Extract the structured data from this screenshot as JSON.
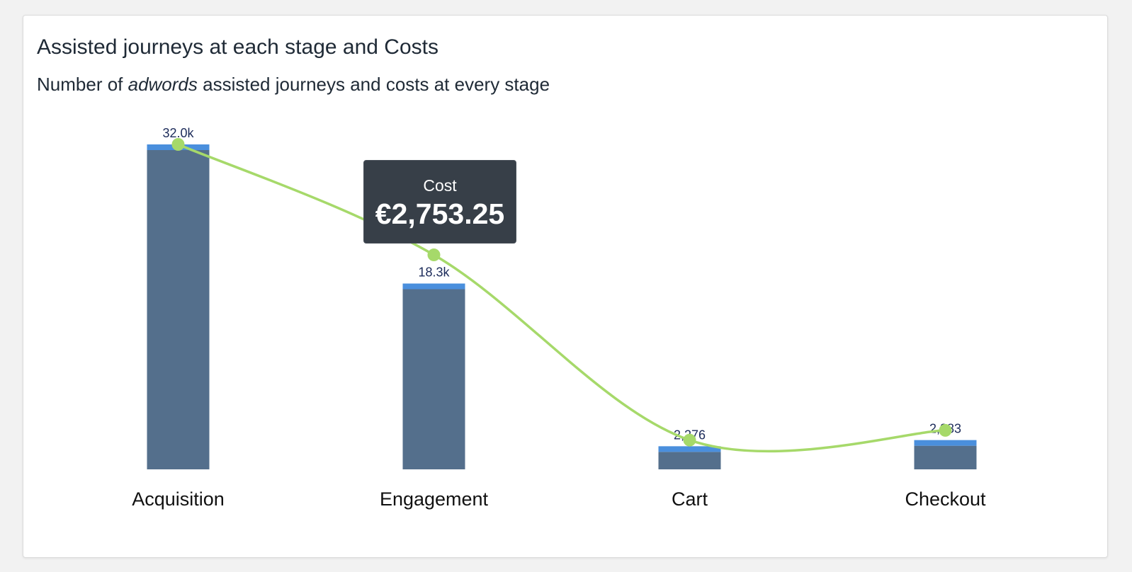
{
  "card": {
    "title": "Assisted journeys at each stage and Costs",
    "subtitle_before": "Number of ",
    "subtitle_emphasis": "adwords",
    "subtitle_after": " assisted journeys and costs at every stage"
  },
  "tooltip": {
    "label": "Cost",
    "value": "€2,753.25"
  },
  "colors": {
    "bar": "#546f8c",
    "bar_cap": "#4a8fdd",
    "line": "#a6d96a",
    "data_label": "#1c2b5a",
    "category_label": "#111111"
  },
  "chart_data": {
    "type": "bar",
    "categories": [
      "Acquisition",
      "Engagement",
      "Cart",
      "Checkout"
    ],
    "series": [
      {
        "type": "bar",
        "values": [
          32000,
          18300,
          2276,
          2883
        ],
        "labels": [
          "32.0k",
          "18.3k",
          "2,276",
          "2,883"
        ]
      },
      {
        "name": "Cost",
        "type": "line",
        "smooth": true,
        "values": [
          100,
          66,
          9,
          12
        ]
      }
    ],
    "ylim": [
      0,
      32000
    ],
    "grid": false,
    "legend": "none"
  }
}
